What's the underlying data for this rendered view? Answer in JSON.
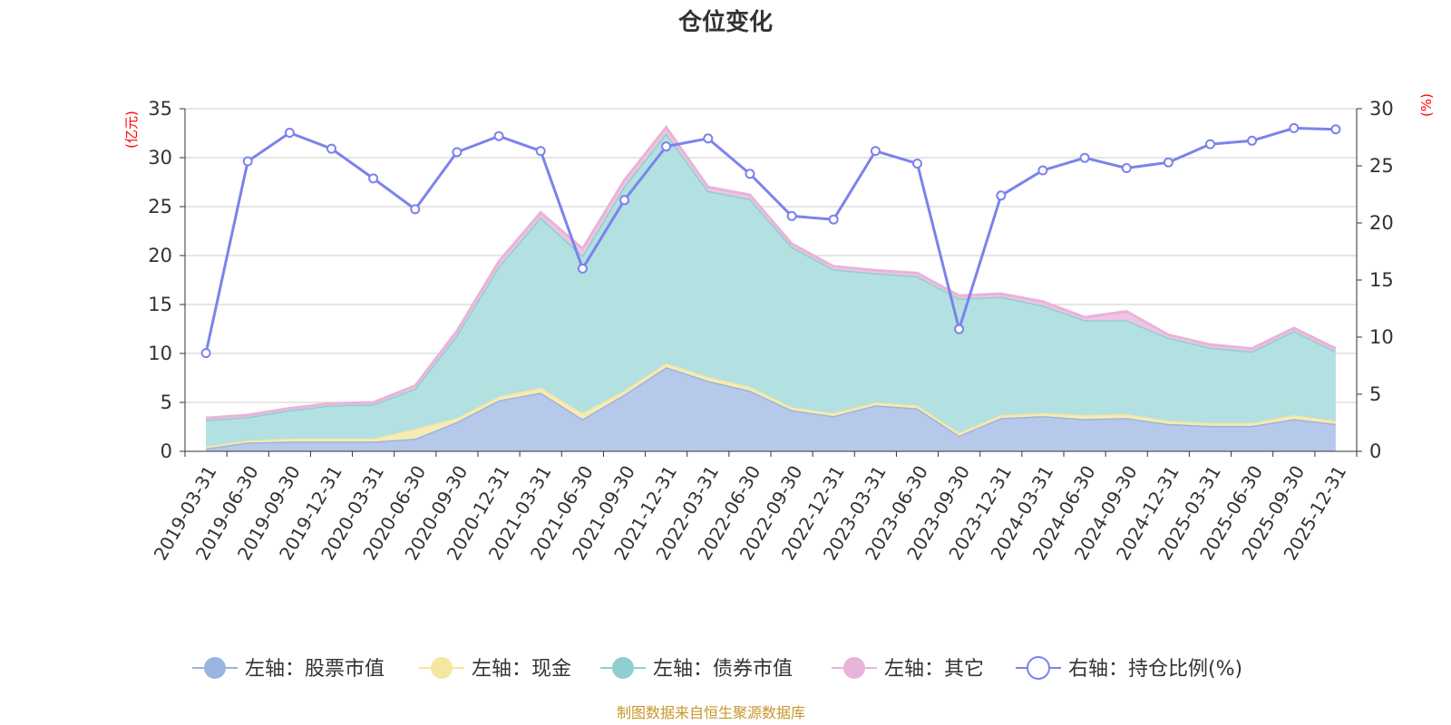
{
  "chart_data": {
    "type": "area",
    "title": "仓位变化",
    "left_axis_unit": "(亿元)",
    "right_axis_unit": "(%)",
    "left_ylim": [
      0,
      35
    ],
    "left_ticks": [
      0,
      5,
      10,
      15,
      20,
      25,
      30,
      35
    ],
    "right_ylim": [
      0,
      30
    ],
    "right_ticks": [
      0,
      5,
      10,
      15,
      20,
      25,
      30
    ],
    "categories": [
      "2019-03-31",
      "2019-06-30",
      "2019-09-30",
      "2019-12-31",
      "2020-03-31",
      "2020-06-30",
      "2020-09-30",
      "2020-12-31",
      "2021-03-31",
      "2021-06-30",
      "2021-09-30",
      "2021-12-31",
      "2022-03-31",
      "2022-06-30",
      "2022-09-30",
      "2022-12-31",
      "2023-03-31",
      "2023-06-30",
      "2023-09-30",
      "2023-12-31",
      "2024-03-31",
      "2024-06-30",
      "2024-09-30",
      "2024-12-31",
      "2025-03-31",
      "2025-06-30",
      "2025-09-30",
      "2025-12-31"
    ],
    "series": [
      {
        "name": "左轴：股票市值",
        "axis": "left",
        "kind": "stacked-area",
        "color": "#9ab4e0",
        "fill": "#b7c9ea",
        "values": [
          0.3,
          0.9,
          1.0,
          1.0,
          1.0,
          1.3,
          3.0,
          5.2,
          6.0,
          3.3,
          5.8,
          8.6,
          7.2,
          6.2,
          4.2,
          3.6,
          4.7,
          4.4,
          1.6,
          3.4,
          3.6,
          3.3,
          3.4,
          2.8,
          2.6,
          2.6,
          3.3,
          2.8
        ]
      },
      {
        "name": "左轴：现金",
        "axis": "left",
        "kind": "stacked-area",
        "color": "#f5e6a0",
        "fill": "#f7ebb5",
        "values": [
          0.2,
          0.2,
          0.3,
          0.3,
          0.3,
          1.0,
          0.4,
          0.4,
          0.5,
          0.6,
          0.4,
          0.4,
          0.4,
          0.4,
          0.3,
          0.3,
          0.3,
          0.3,
          0.3,
          0.3,
          0.3,
          0.4,
          0.4,
          0.3,
          0.3,
          0.3,
          0.4,
          0.3
        ]
      },
      {
        "name": "左轴：债券市值",
        "axis": "left",
        "kind": "stacked-area",
        "color": "#8fcfcf",
        "fill": "#b3e0e0",
        "values": [
          2.7,
          2.4,
          2.9,
          3.4,
          3.5,
          4.1,
          8.5,
          13.3,
          17.4,
          16.1,
          20.9,
          23.5,
          19.0,
          19.2,
          16.4,
          14.7,
          13.2,
          13.2,
          13.7,
          12.1,
          11.0,
          9.7,
          9.6,
          8.5,
          7.7,
          7.3,
          8.6,
          7.1
        ]
      },
      {
        "name": "左轴：其它",
        "axis": "left",
        "kind": "stacked-area",
        "color": "#e8b4d9",
        "fill": "#eec5e2",
        "values": [
          0.2,
          0.2,
          0.2,
          0.2,
          0.2,
          0.3,
          0.4,
          0.5,
          0.5,
          0.7,
          0.6,
          0.6,
          0.4,
          0.4,
          0.3,
          0.3,
          0.3,
          0.3,
          0.3,
          0.3,
          0.4,
          0.3,
          0.9,
          0.3,
          0.3,
          0.3,
          0.3,
          0.3
        ]
      },
      {
        "name": "右轴：持仓比例(%)",
        "axis": "right",
        "kind": "line",
        "color": "#7b83eb",
        "values": [
          8.6,
          25.4,
          27.9,
          26.5,
          23.9,
          21.2,
          26.2,
          27.6,
          26.3,
          16.0,
          22.0,
          26.7,
          27.4,
          24.3,
          20.6,
          20.3,
          26.3,
          25.2,
          10.7,
          22.4,
          24.6,
          25.7,
          24.8,
          25.3,
          26.9,
          27.2,
          28.3,
          28.2
        ]
      }
    ]
  },
  "source_note": "制图数据来自恒生聚源数据库"
}
